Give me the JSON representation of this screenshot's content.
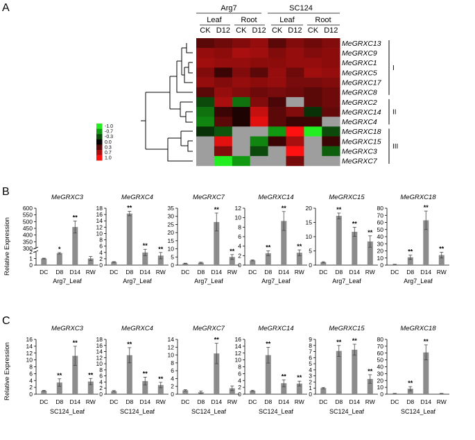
{
  "panel_labels": [
    "A",
    "B",
    "C"
  ],
  "heatmap": {
    "cultivars": [
      "Arg7",
      "SC124"
    ],
    "tissues": [
      "Leaf",
      "Root",
      "Leaf",
      "Root"
    ],
    "conditions": [
      "CK",
      "D12",
      "CK",
      "D12",
      "CK",
      "D12",
      "CK",
      "D12"
    ],
    "genes": [
      "MeGRXC13",
      "MeGRXC9",
      "MeGRXC1",
      "MeGRXC5",
      "MeGRXC17",
      "MeGRXC8",
      "MeGRXC2",
      "MeGRXC14",
      "MeGRXC4",
      "MeGRXC18",
      "MeGRXC15",
      "MeGRXC3",
      "MeGRXC7"
    ],
    "groups": [
      {
        "label": "I",
        "start": 0,
        "end": 5
      },
      {
        "label": "II",
        "start": 6,
        "end": 8
      },
      {
        "label": "III",
        "start": 9,
        "end": 12
      }
    ],
    "legend": [
      "-1.0",
      "-0.7",
      "-0.3",
      "0.0",
      "0.3",
      "0.7",
      "1.0"
    ],
    "legend_colors": [
      "#22ee22",
      "#119911",
      "#0c4a0c",
      "#000000",
      "#5a0808",
      "#aa0f0f",
      "#ff1111"
    ],
    "missing_color": "#9e9e9e",
    "values": [
      [
        0.3,
        0.4,
        0.5,
        0.6,
        0.3,
        0.5,
        0.4,
        0.5
      ],
      [
        0.6,
        0.55,
        0.7,
        0.65,
        0.5,
        0.6,
        0.5,
        0.55
      ],
      [
        0.65,
        0.6,
        0.6,
        0.55,
        0.55,
        0.6,
        0.6,
        0.55
      ],
      [
        0.5,
        0.2,
        0.5,
        0.3,
        0.6,
        0.4,
        0.65,
        0.6
      ],
      [
        0.6,
        0.5,
        0.6,
        0.55,
        0.6,
        0.45,
        0.45,
        0.5
      ],
      [
        0.3,
        0.6,
        0.5,
        0.4,
        0.45,
        0.4,
        0.3,
        0.4
      ],
      [
        -0.3,
        0.7,
        -0.5,
        0.5,
        0.25,
        null,
        0.3,
        0.4
      ],
      [
        -0.5,
        0.2,
        0.1,
        0.8,
        0.3,
        0.5,
        -0.2,
        0.35
      ],
      [
        -0.6,
        0.3,
        0.1,
        0.9,
        0.3,
        0.2,
        0.2,
        null
      ],
      [
        -0.2,
        -0.35,
        null,
        null,
        -0.7,
        1.0,
        -1.0,
        -0.3
      ],
      [
        null,
        0.9,
        null,
        -0.6,
        0.2,
        0.7,
        null,
        0.2
      ],
      [
        null,
        0.5,
        null,
        -0.3,
        null,
        1.0,
        null,
        -0.4
      ],
      [
        null,
        -1.0,
        -0.7,
        null,
        null,
        0.45,
        null,
        null
      ]
    ]
  },
  "chart_data": [
    {
      "type": "bar",
      "title": "MeGRXC3",
      "xlabel": "Arg7_Leaf",
      "ylabel": "Relative Expression",
      "categories": [
        "DC",
        "D8",
        "D14",
        "RW"
      ],
      "values": [
        1.0,
        1.8,
        460,
        1.0
      ],
      "errors": [
        0.05,
        0.1,
        45,
        0.3
      ],
      "significance": [
        "",
        "*",
        "**",
        ""
      ],
      "broken_axis": true,
      "lower_ticks": [
        "0",
        "1",
        "2"
      ],
      "upper_ticks": [
        "300",
        "350",
        "400",
        "450",
        "500",
        "550",
        "600"
      ]
    },
    {
      "type": "bar",
      "title": "MeGRXC4",
      "xlabel": "Arg7_Leaf",
      "categories": [
        "DC",
        "D8",
        "D14",
        "RW"
      ],
      "values": [
        1.0,
        16.3,
        4.0,
        3.0
      ],
      "errors": [
        0.1,
        0.7,
        1.0,
        1.0
      ],
      "significance": [
        "",
        "**",
        "**",
        "**"
      ],
      "ylim": [
        0,
        18
      ],
      "yticks": [
        0,
        2,
        4,
        6,
        8,
        10,
        12,
        14,
        16,
        18
      ]
    },
    {
      "type": "bar",
      "title": "MeGRXC7",
      "xlabel": "Arg7_Leaf",
      "categories": [
        "DC",
        "D8",
        "D14",
        "RW"
      ],
      "values": [
        1.0,
        1.5,
        26.5,
        5.0
      ],
      "errors": [
        0.2,
        0.3,
        5.5,
        1.5
      ],
      "significance": [
        "",
        "",
        "**",
        "**"
      ],
      "ylim": [
        0,
        35
      ],
      "yticks": [
        0,
        5,
        10,
        15,
        20,
        25,
        30,
        35
      ]
    },
    {
      "type": "bar",
      "title": "MeGRXC14",
      "xlabel": "Arg7_Leaf",
      "categories": [
        "DC",
        "D8",
        "D14",
        "RW"
      ],
      "values": [
        1.0,
        2.5,
        9.3,
        2.6
      ],
      "errors": [
        0.1,
        0.5,
        2.0,
        0.6
      ],
      "significance": [
        "",
        "**",
        "**",
        "**"
      ],
      "ylim": [
        0,
        12
      ],
      "yticks": [
        0,
        2,
        4,
        6,
        8,
        10,
        12
      ]
    },
    {
      "type": "bar",
      "title": "MeGRXC15",
      "xlabel": "Arg7_Leaf",
      "categories": [
        "DC",
        "D8",
        "D14",
        "RW"
      ],
      "values": [
        1.0,
        17.3,
        11.7,
        8.3
      ],
      "errors": [
        0.2,
        1.0,
        1.6,
        2.0
      ],
      "significance": [
        "",
        "**",
        "**",
        "**"
      ],
      "ylim": [
        0,
        20
      ],
      "yticks": [
        0,
        5,
        10,
        15,
        20
      ]
    },
    {
      "type": "bar",
      "title": "MeGRXC18",
      "xlabel": "Arg7_Leaf",
      "categories": [
        "DC",
        "D8",
        "D14",
        "RW"
      ],
      "values": [
        1.0,
        11,
        63,
        14
      ],
      "errors": [
        0.2,
        3,
        13,
        4
      ],
      "significance": [
        "",
        "**",
        "**",
        "**"
      ],
      "ylim": [
        0,
        80
      ],
      "yticks": [
        0,
        10,
        20,
        30,
        40,
        50,
        60,
        70,
        80
      ]
    },
    {
      "type": "bar",
      "title": "MeGRXC3",
      "xlabel": "SC124_Leaf",
      "ylabel": "Relative Expression",
      "categories": [
        "DC",
        "D8",
        "D14",
        "RW"
      ],
      "values": [
        1.0,
        3.4,
        11.2,
        3.7
      ],
      "errors": [
        0.1,
        1.1,
        2.8,
        0.9
      ],
      "significance": [
        "",
        "**",
        "**",
        "**"
      ],
      "ylim": [
        0,
        16
      ],
      "yticks": [
        0,
        2,
        4,
        6,
        8,
        10,
        12,
        14,
        16
      ]
    },
    {
      "type": "bar",
      "title": "MeGRXC4",
      "xlabel": "SC124_Leaf",
      "categories": [
        "DC",
        "D8",
        "D14",
        "RW"
      ],
      "values": [
        1.0,
        12.8,
        4.3,
        3.0
      ],
      "errors": [
        0.2,
        2.5,
        1.3,
        0.9
      ],
      "significance": [
        "",
        "**",
        "**",
        "**"
      ],
      "ylim": [
        0,
        18
      ],
      "yticks": [
        0,
        2,
        4,
        6,
        8,
        10,
        12,
        14,
        16,
        18
      ]
    },
    {
      "type": "bar",
      "title": "MeGRXC7",
      "xlabel": "SC124_Leaf",
      "categories": [
        "DC",
        "D8",
        "D14",
        "RW"
      ],
      "values": [
        1.0,
        0.5,
        10.4,
        1.5
      ],
      "errors": [
        0.15,
        0.3,
        2.6,
        0.6
      ],
      "significance": [
        "",
        "",
        "**",
        ""
      ],
      "ylim": [
        0,
        14
      ],
      "yticks": [
        0,
        2,
        4,
        6,
        8,
        10,
        12,
        14
      ]
    },
    {
      "type": "bar",
      "title": "MeGRXC14",
      "xlabel": "SC124_Leaf",
      "categories": [
        "DC",
        "D8",
        "D14",
        "RW"
      ],
      "values": [
        1.0,
        11.4,
        3.2,
        3.1
      ],
      "errors": [
        0.15,
        2.3,
        1.0,
        0.7
      ],
      "significance": [
        "",
        "**",
        "**",
        "**"
      ],
      "ylim": [
        0,
        16
      ],
      "yticks": [
        0,
        2,
        4,
        6,
        8,
        10,
        12,
        14,
        16
      ]
    },
    {
      "type": "bar",
      "title": "MeGRXC15",
      "xlabel": "SC124_Leaf",
      "categories": [
        "DC",
        "D8",
        "D14",
        "RW"
      ],
      "values": [
        1.0,
        7.1,
        7.3,
        2.5
      ],
      "errors": [
        0.1,
        0.9,
        0.9,
        0.7
      ],
      "significance": [
        "",
        "**",
        "**",
        "**"
      ],
      "ylim": [
        0,
        9
      ],
      "yticks": [
        0,
        1,
        2,
        3,
        4,
        5,
        6,
        7,
        8,
        9
      ]
    },
    {
      "type": "bar",
      "title": "MeGRXC18",
      "xlabel": "SC124_Leaf",
      "categories": [
        "DC",
        "D8",
        "D14",
        "RW"
      ],
      "values": [
        1.0,
        8,
        61,
        1.0
      ],
      "errors": [
        0.2,
        3,
        11,
        0.2
      ],
      "significance": [
        "",
        "**",
        "**",
        ""
      ],
      "ylim": [
        0,
        80
      ],
      "yticks": [
        0,
        10,
        20,
        30,
        40,
        50,
        60,
        70,
        80
      ]
    }
  ]
}
